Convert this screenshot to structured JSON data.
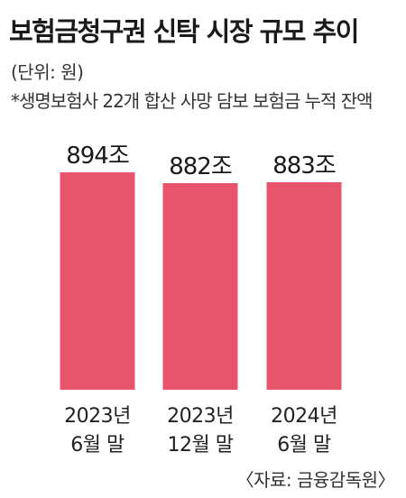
{
  "title": "보험금청구권 신탁 시장 규모 추이",
  "unit_note": "(단위: 원)",
  "footnote": "*생명보험사 22개 합산 사망 담보 보험금 누적 잔액",
  "source": "〈자료: 금융감독원〉",
  "colors": {
    "bar": "#e8546c"
  },
  "chart_data": {
    "type": "bar",
    "title": "보험금청구권 신탁 시장 규모 추이",
    "xlabel": "",
    "ylabel": "",
    "categories": [
      [
        "2023년",
        "6월 말"
      ],
      [
        "2023년",
        "12월 말"
      ],
      [
        "2024년",
        "6월 말"
      ]
    ],
    "values": [
      894,
      882,
      883
    ],
    "value_labels": [
      "894조",
      "882조",
      "883조"
    ],
    "grid": false,
    "legend": "none"
  }
}
